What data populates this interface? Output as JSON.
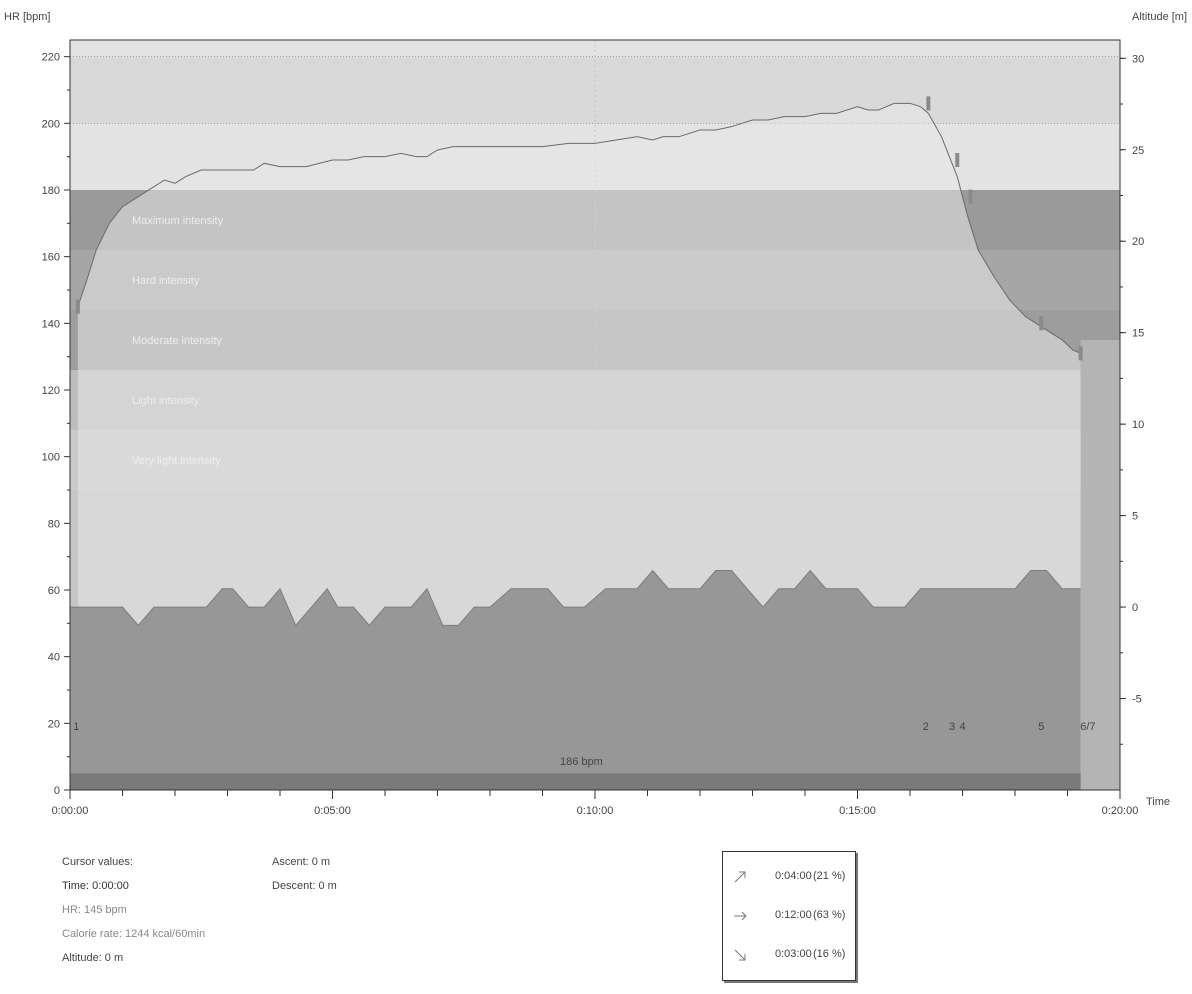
{
  "chart_data": {
    "type": "line",
    "left_axis_label": "HR [bpm]",
    "right_axis_label": "Altitude [m]",
    "x_axis_label": "Time",
    "x_ticks": [
      "0:00:00",
      "0:05:00",
      "0:10:00",
      "0:15:00",
      "0:20:00"
    ],
    "y_ticks": [
      "0",
      "20",
      "40",
      "60",
      "80",
      "100",
      "120",
      "140",
      "160",
      "180",
      "200",
      "220"
    ],
    "y2_ticks": [
      "30",
      "25",
      "20",
      "15",
      "10",
      "5",
      "0",
      "-5"
    ],
    "ylim": [
      0,
      225
    ],
    "y2lim": [
      -10,
      31
    ],
    "xlim": [
      0,
      20
    ],
    "zones": [
      {
        "label": "Maximum intensity",
        "from": 162,
        "to": 180,
        "color": "#9a9a9a"
      },
      {
        "label": "Hard intensity",
        "from": 144,
        "to": 162,
        "color": "#a6a6a6"
      },
      {
        "label": "Moderate intensity",
        "from": 126,
        "to": 144,
        "color": "#9d9d9d"
      },
      {
        "label": "Light intensity",
        "from": 108,
        "to": 126,
        "color": "#bdbdbd"
      },
      {
        "label": "Very light intensity",
        "from": 90,
        "to": 108,
        "color": "#cacaca"
      }
    ],
    "series": [
      {
        "name": "HR",
        "x": [
          0.15,
          0.3,
          0.5,
          0.75,
          1.0,
          1.3,
          1.6,
          1.8,
          2.0,
          2.2,
          2.5,
          3.0,
          3.5,
          3.7,
          4.0,
          4.5,
          5.0,
          5.3,
          5.6,
          6.0,
          6.3,
          6.6,
          6.8,
          7.0,
          7.3,
          7.6,
          8.0,
          8.5,
          9.0,
          9.5,
          10.0,
          10.4,
          10.8,
          11.1,
          11.3,
          11.6,
          12.0,
          12.3,
          12.6,
          13.0,
          13.3,
          13.6,
          14.0,
          14.3,
          14.6,
          15.0,
          15.2,
          15.4,
          15.7,
          16.0,
          16.2,
          16.35,
          16.6,
          16.9,
          17.1,
          17.3,
          17.6,
          17.9,
          18.2,
          18.5,
          18.7,
          18.9,
          19.1,
          19.25
        ],
        "values": [
          145,
          152,
          162,
          170,
          175,
          178,
          181,
          183,
          182,
          184,
          186,
          186,
          186,
          188,
          187,
          187,
          189,
          189,
          190,
          190,
          191,
          190,
          190,
          192,
          193,
          193,
          193,
          193,
          193,
          194,
          194,
          195,
          196,
          195,
          196,
          196,
          198,
          198,
          199,
          201,
          201,
          202,
          202,
          203,
          203,
          205,
          204,
          204,
          206,
          206,
          205,
          203,
          196,
          184,
          172,
          162,
          154,
          147,
          142,
          139,
          137,
          135,
          132,
          131
        ]
      },
      {
        "name": "Altitude",
        "x": [
          0.0,
          0.5,
          1.0,
          1.3,
          1.6,
          2.0,
          2.3,
          2.6,
          2.9,
          3.1,
          3.4,
          3.7,
          4.0,
          4.3,
          4.6,
          4.9,
          5.1,
          5.4,
          5.7,
          6.0,
          6.2,
          6.5,
          6.8,
          7.1,
          7.4,
          7.7,
          8.0,
          8.4,
          8.8,
          9.1,
          9.4,
          9.8,
          10.2,
          10.5,
          10.8,
          11.1,
          11.4,
          11.7,
          12.0,
          12.3,
          12.6,
          12.9,
          13.2,
          13.5,
          13.8,
          14.1,
          14.4,
          14.7,
          15.0,
          15.3,
          15.6,
          15.9,
          16.2,
          16.5,
          16.8,
          17.1,
          17.4,
          17.7,
          18.0,
          18.3,
          18.6,
          18.9,
          19.25
        ],
        "values": [
          0,
          0,
          0,
          -1,
          0,
          0,
          0,
          0,
          1,
          1,
          0,
          0,
          1,
          -1,
          0,
          1,
          0,
          0,
          -1,
          0,
          0,
          0,
          1,
          -1,
          -1,
          0,
          0,
          1,
          1,
          1,
          0,
          0,
          1,
          1,
          1,
          2,
          1,
          1,
          1,
          2,
          2,
          1,
          0,
          1,
          1,
          2,
          1,
          1,
          1,
          0,
          0,
          0,
          1,
          1,
          1,
          1,
          1,
          1,
          1,
          2,
          2,
          1,
          1
        ]
      }
    ],
    "marker_labels": [
      {
        "label": "1",
        "x": 0.12
      },
      {
        "label": "2",
        "x": 16.3
      },
      {
        "label": "3",
        "x": 16.8
      },
      {
        "label": "4",
        "x": 17.0
      },
      {
        "label": "5",
        "x": 18.5
      },
      {
        "label": "6/7",
        "x": 19.3
      }
    ],
    "bottom_bar_label": "186 bpm",
    "grid": true
  },
  "cursor": {
    "title": "Cursor values:",
    "time": "Time: 0:00:00",
    "hr": "HR: 145 bpm",
    "calorie": "Calorie rate: 1244 kcal/60min",
    "altitude": "Altitude: 0 m"
  },
  "ascent": {
    "ascent": "Ascent: 0 m",
    "descent": "Descent: 0 m"
  },
  "summary": [
    {
      "icon": "ascent-arrow-icon",
      "time": "0:04:00",
      "pct": "(21 %)"
    },
    {
      "icon": "flat-arrow-icon",
      "time": "0:12:00",
      "pct": "(63 %)"
    },
    {
      "icon": "descent-arrow-icon",
      "time": "0:03:00",
      "pct": "(16 %)"
    }
  ]
}
